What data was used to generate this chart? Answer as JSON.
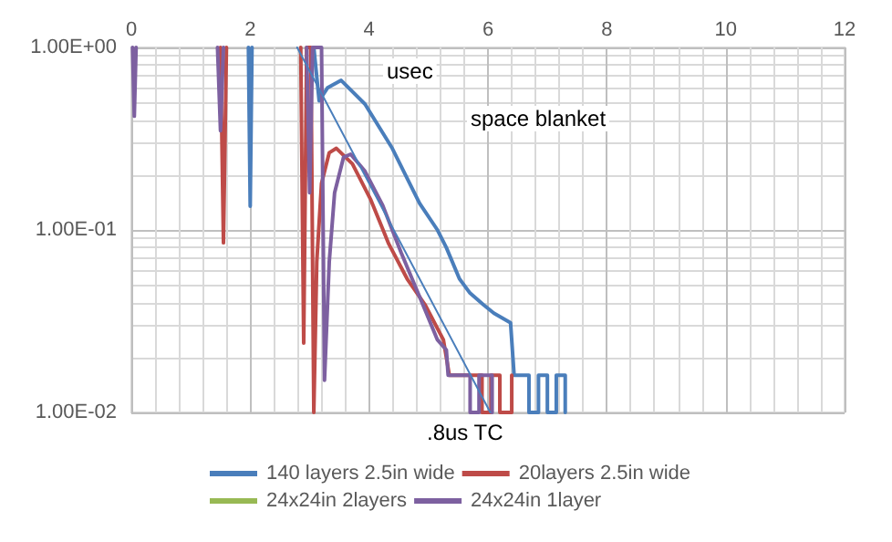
{
  "chart_data": {
    "type": "line",
    "xlabel": "usec",
    "annotations": [
      "space blanket",
      ".8us TC"
    ],
    "xlim": [
      0,
      12
    ],
    "xticks": [
      0,
      2,
      4,
      6,
      8,
      10,
      12
    ],
    "ylim": [
      0.01,
      1
    ],
    "yticks": [
      {
        "value": 1,
        "label": "1.00E+00"
      },
      {
        "value": 0.1,
        "label": "1.00E-01"
      },
      {
        "value": 0.01,
        "label": "1.00E-02"
      }
    ],
    "log": "y",
    "grid": true,
    "legend": "bottom",
    "marker": "none",
    "series": [
      {
        "name": "140 layers 2.5in wide",
        "color": "#4a7ebb",
        "x": [
          1.97,
          2.0,
          2.03,
          2.5,
          3.07,
          3.16,
          3.3,
          3.53,
          3.93,
          4.39,
          4.85,
          5.15,
          5.3,
          5.52,
          5.7,
          5.92,
          6.1,
          6.38,
          6.42,
          6.44,
          6.69,
          6.69,
          6.85,
          6.85,
          7.0,
          7.0,
          7.15,
          7.15,
          7.3,
          7.3
        ],
        "values": [
          1,
          0.135,
          1,
          null,
          1,
          0.51,
          0.6,
          0.66,
          0.49,
          0.28,
          0.14,
          0.1,
          0.08,
          0.054,
          0.045,
          0.039,
          0.035,
          0.031,
          0.02,
          0.016,
          0.016,
          0.01,
          0.01,
          0.016,
          0.016,
          0.01,
          0.01,
          0.016,
          0.016,
          0.01
        ]
      },
      {
        "name": "20layers 2.5in wide",
        "color": "#be4b48",
        "x": [
          1.5,
          1.55,
          1.6,
          2.2,
          2.85,
          2.9,
          2.95,
          3.02,
          3.07,
          3.12,
          3.2,
          3.33,
          3.45,
          3.72,
          4.03,
          4.33,
          4.64,
          4.94,
          5.25,
          5.35,
          5.9,
          5.9,
          6.05,
          6.05,
          6.2,
          6.2,
          6.4,
          6.4
        ],
        "values": [
          1,
          0.085,
          1,
          null,
          1,
          0.024,
          1,
          1,
          0.01,
          0.067,
          0.18,
          0.265,
          0.28,
          0.23,
          0.146,
          0.084,
          0.054,
          0.039,
          0.025,
          0.016,
          0.016,
          0.01,
          0.01,
          0.016,
          0.016,
          0.01,
          0.01,
          0.016
        ]
      },
      {
        "name": "24x24in 2layers",
        "color": "#98b954"
      },
      {
        "name": "24x24in 1layer",
        "color": "#7d60a0",
        "x": [
          0.02,
          0.05,
          0.08,
          0.8,
          1.45,
          1.5,
          1.55,
          2.2,
          2.95,
          3.0,
          3.05,
          3.2,
          3.25,
          3.33,
          3.42,
          3.57,
          3.69,
          3.93,
          4.23,
          4.54,
          4.85,
          5.15,
          5.3,
          5.33,
          5.7,
          5.7,
          5.85,
          5.85,
          6.07,
          6.07
        ],
        "values": [
          1,
          0.42,
          1,
          null,
          1,
          0.35,
          1,
          null,
          1,
          0.16,
          1,
          1,
          0.015,
          0.067,
          0.16,
          0.25,
          0.26,
          0.21,
          0.136,
          0.075,
          0.043,
          0.025,
          0.022,
          0.016,
          0.016,
          0.01,
          0.01,
          0.016,
          0.016,
          0.01
        ]
      },
      {
        "type": "line",
        "color": "#4a7ebb",
        "x": [
          2.79,
          6.04
        ],
        "values": [
          1,
          0.01
        ]
      }
    ]
  }
}
